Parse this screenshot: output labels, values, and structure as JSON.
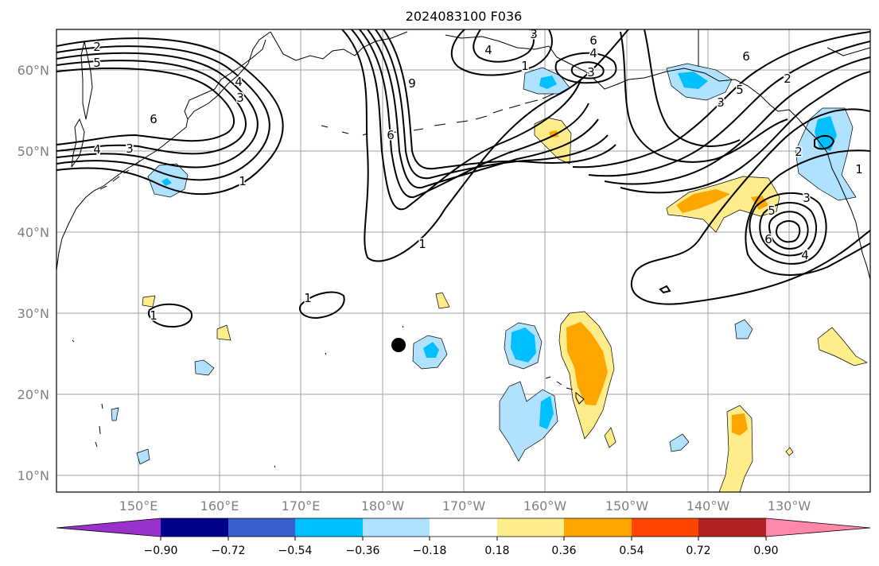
{
  "title": "2024083100 F036",
  "map": {
    "lat_labels": [
      "60°N",
      "50°N",
      "40°N",
      "30°N",
      "20°N",
      "10°N"
    ],
    "lon_labels": [
      "150°E",
      "160°E",
      "170°E",
      "180°W",
      "170°W",
      "160°W",
      "150°W",
      "140°W",
      "130°W"
    ],
    "contour_labels": [
      "2",
      "5",
      "4",
      "3",
      "6",
      "4",
      "3",
      "1",
      "9",
      "6",
      "1",
      "3",
      "4",
      "6",
      "4",
      "3",
      "6",
      "2",
      "5",
      "3",
      "2",
      "1",
      "3",
      "5",
      "6",
      "4",
      "1",
      "1",
      "1"
    ]
  },
  "colorbar": {
    "tick_labels": [
      "−0.90",
      "−0.72",
      "−0.54",
      "−0.36",
      "−0.18",
      "0.18",
      "0.36",
      "0.54",
      "0.72",
      "0.90"
    ],
    "colors": [
      "#9932cc",
      "#00008b",
      "#3a5fcd",
      "#00bfff",
      "#b0e2ff",
      "#ffffff",
      "#ffec8b",
      "#ffa500",
      "#ff4500",
      "#b22222",
      "#ff88aa"
    ]
  },
  "marker": {
    "symbol": "black-dot"
  }
}
